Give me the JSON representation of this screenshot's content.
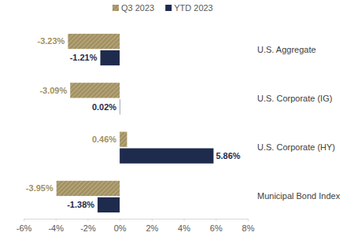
{
  "chart_data": {
    "type": "bar",
    "orientation": "horizontal",
    "categories": [
      "U.S. Aggregate",
      "U.S. Corporate (IG)",
      "U.S. Corporate (HY)",
      "Municipal Bond Index"
    ],
    "series": [
      {
        "name": "Q3 2023",
        "color": "#a39161",
        "values": [
          -3.23,
          -3.09,
          0.46,
          -3.95
        ],
        "value_labels": [
          "-3.23%",
          "-3.09%",
          "0.46%",
          "-3.95%"
        ]
      },
      {
        "name": "YTD 2023",
        "color": "#1f2b4d",
        "values": [
          -1.21,
          0.02,
          5.86,
          -1.38
        ],
        "value_labels": [
          "-1.21%",
          "0.02%",
          "5.86%",
          "-1.38%"
        ]
      }
    ],
    "xlim": [
      -6,
      8
    ],
    "xticks": [
      {
        "value": -6,
        "label": "-6%"
      },
      {
        "value": -4,
        "label": "-4%"
      },
      {
        "value": -2,
        "label": "-2%"
      },
      {
        "value": 0,
        "label": "0%"
      },
      {
        "value": 2,
        "label": "2%"
      },
      {
        "value": 4,
        "label": "4%"
      },
      {
        "value": 6,
        "label": "6%"
      },
      {
        "value": 8,
        "label": "8%"
      }
    ],
    "data_labels": true,
    "legend": "top",
    "grid": false
  }
}
